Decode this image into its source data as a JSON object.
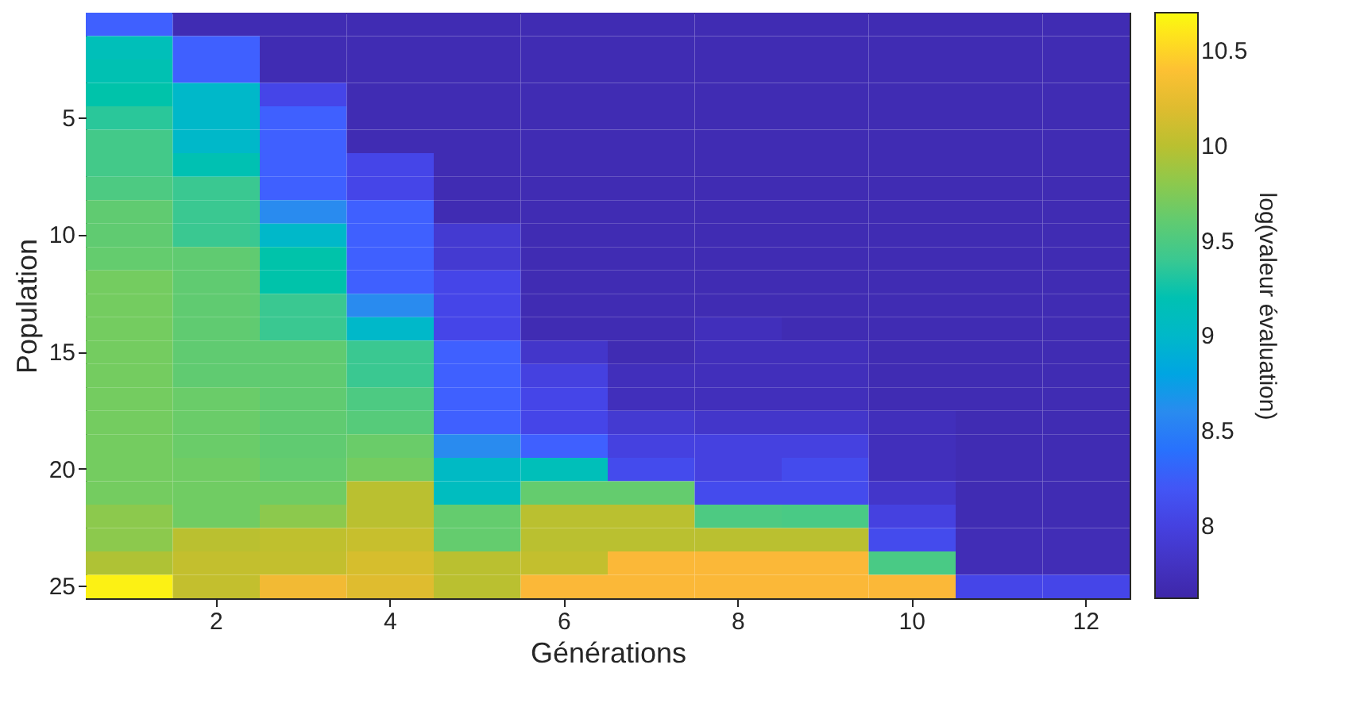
{
  "chart_data": {
    "type": "heatmap",
    "xlabel": "Générations",
    "ylabel": "Population",
    "clabel": "log(valeur évaluation)",
    "categories": [
      null,
      "2",
      null,
      "4",
      null,
      "6",
      null,
      "8",
      null,
      "10",
      null,
      "12"
    ],
    "y_categories": [
      null,
      null,
      null,
      null,
      "5",
      null,
      null,
      null,
      null,
      "10",
      null,
      null,
      null,
      null,
      "15",
      null,
      null,
      null,
      null,
      "20",
      null,
      null,
      null,
      null,
      "25"
    ],
    "cells": [
      [
        8.3,
        7.7,
        7.7,
        7.7,
        7.7,
        7.7,
        7.7,
        7.7,
        7.7,
        7.7,
        7.7,
        7.7
      ],
      [
        9.15,
        8.3,
        7.7,
        7.7,
        7.7,
        7.7,
        7.7,
        7.7,
        7.7,
        7.7,
        7.7,
        7.7
      ],
      [
        9.2,
        8.3,
        7.7,
        7.7,
        7.7,
        7.7,
        7.7,
        7.7,
        7.7,
        7.7,
        7.7,
        7.7
      ],
      [
        9.25,
        9.0,
        8.05,
        7.7,
        7.7,
        7.7,
        7.7,
        7.7,
        7.7,
        7.7,
        7.7,
        7.7
      ],
      [
        9.35,
        9.0,
        8.3,
        7.7,
        7.7,
        7.7,
        7.7,
        7.7,
        7.7,
        7.7,
        7.7,
        7.7
      ],
      [
        9.45,
        9.0,
        8.3,
        7.7,
        7.7,
        7.7,
        7.7,
        7.7,
        7.7,
        7.7,
        7.7,
        7.7
      ],
      [
        9.45,
        9.2,
        8.3,
        8.05,
        7.7,
        7.7,
        7.7,
        7.7,
        7.7,
        7.7,
        7.7,
        7.7
      ],
      [
        9.5,
        9.4,
        8.3,
        8.05,
        7.7,
        7.7,
        7.7,
        7.7,
        7.7,
        7.7,
        7.7,
        7.7
      ],
      [
        9.6,
        9.4,
        8.6,
        8.3,
        7.7,
        7.7,
        7.7,
        7.7,
        7.7,
        7.7,
        7.7,
        7.7
      ],
      [
        9.6,
        9.4,
        9.0,
        8.3,
        7.9,
        7.7,
        7.7,
        7.7,
        7.7,
        7.7,
        7.7,
        7.7
      ],
      [
        9.62,
        9.6,
        9.25,
        8.3,
        7.9,
        7.7,
        7.7,
        7.7,
        7.7,
        7.7,
        7.7,
        7.7
      ],
      [
        9.7,
        9.6,
        9.25,
        8.3,
        8.05,
        7.7,
        7.7,
        7.7,
        7.7,
        7.7,
        7.7,
        7.7
      ],
      [
        9.7,
        9.6,
        9.4,
        8.6,
        8.05,
        7.7,
        7.7,
        7.7,
        7.7,
        7.7,
        7.7,
        7.7
      ],
      [
        9.7,
        9.6,
        9.4,
        9.0,
        8.05,
        7.7,
        7.7,
        7.75,
        7.7,
        7.7,
        7.7,
        7.7
      ],
      [
        9.7,
        9.6,
        9.6,
        9.4,
        8.3,
        7.85,
        7.7,
        7.75,
        7.75,
        7.7,
        7.7,
        7.7
      ],
      [
        9.7,
        9.6,
        9.6,
        9.4,
        8.3,
        8.0,
        7.75,
        7.75,
        7.75,
        7.7,
        7.7,
        7.7
      ],
      [
        9.7,
        9.65,
        9.6,
        9.5,
        8.3,
        8.05,
        7.75,
        7.75,
        7.75,
        7.7,
        7.7,
        7.7
      ],
      [
        9.7,
        9.65,
        9.6,
        9.55,
        8.3,
        8.05,
        7.9,
        7.85,
        7.85,
        7.75,
        7.7,
        7.7
      ],
      [
        9.7,
        9.65,
        9.6,
        9.65,
        8.6,
        8.3,
        8.0,
        8.0,
        8.0,
        7.75,
        7.7,
        7.7
      ],
      [
        9.7,
        9.68,
        9.62,
        9.7,
        9.05,
        9.15,
        8.1,
        8.0,
        8.1,
        7.75,
        7.7,
        7.7
      ],
      [
        9.7,
        9.68,
        9.68,
        10.0,
        9.1,
        9.62,
        9.62,
        8.1,
        8.1,
        7.85,
        7.7,
        7.7
      ],
      [
        9.8,
        9.68,
        9.8,
        10.0,
        9.62,
        10.0,
        10.0,
        9.5,
        9.48,
        8.0,
        7.7,
        7.7
      ],
      [
        9.8,
        10.0,
        10.03,
        10.07,
        9.62,
        10.0,
        10.0,
        10.0,
        10.0,
        8.1,
        7.72,
        7.72
      ],
      [
        9.95,
        10.05,
        10.05,
        10.15,
        10.0,
        10.05,
        10.35,
        10.35,
        10.35,
        9.48,
        7.72,
        7.72
      ],
      [
        10.65,
        10.05,
        10.3,
        10.2,
        10.0,
        10.35,
        10.35,
        10.35,
        10.35,
        10.35,
        8.05,
        8.05
      ]
    ],
    "clim": [
      7.62,
      10.7
    ],
    "cticks": [
      8,
      8.5,
      9,
      9.5,
      10,
      10.5
    ]
  }
}
